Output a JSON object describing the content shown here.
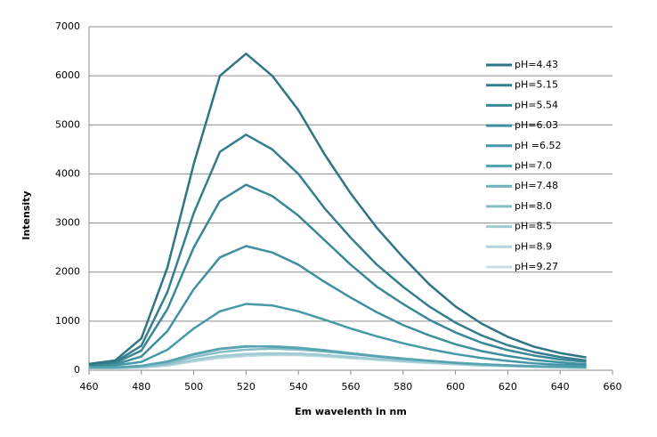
{
  "chart_data": {
    "type": "line",
    "x_label": "Em wavelenth in nm",
    "y_label": "Intensity",
    "x": [
      460,
      470,
      480,
      490,
      500,
      510,
      520,
      530,
      540,
      550,
      560,
      570,
      580,
      590,
      600,
      610,
      620,
      630,
      640,
      650
    ],
    "xlim": [
      460,
      660
    ],
    "xticks": [
      460,
      480,
      500,
      520,
      540,
      560,
      580,
      600,
      620,
      640,
      660
    ],
    "ylim": [
      0,
      7000
    ],
    "yticks": [
      0,
      1000,
      2000,
      3000,
      4000,
      5000,
      6000,
      7000
    ],
    "grid": true,
    "legend": "upper right",
    "series": [
      {
        "name": "pH=4.43",
        "color": "#2f7585",
        "values": [
          130,
          200,
          650,
          2100,
          4200,
          6000,
          6450,
          6000,
          5300,
          4400,
          3600,
          2900,
          2300,
          1750,
          1300,
          950,
          680,
          480,
          350,
          260
        ]
      },
      {
        "name": "pH=5.15",
        "color": "#357e8e",
        "values": [
          120,
          170,
          500,
          1600,
          3200,
          4450,
          4800,
          4500,
          4000,
          3300,
          2700,
          2150,
          1700,
          1300,
          970,
          710,
          510,
          370,
          270,
          200
        ]
      },
      {
        "name": "pH=5.54",
        "color": "#3a8797",
        "values": [
          110,
          150,
          400,
          1250,
          2500,
          3450,
          3780,
          3550,
          3150,
          2650,
          2150,
          1700,
          1350,
          1030,
          770,
          560,
          410,
          300,
          220,
          170
        ]
      },
      {
        "name": "pH=6.03",
        "color": "#3e90a0",
        "values": [
          100,
          120,
          280,
          800,
          1650,
          2300,
          2530,
          2400,
          2150,
          1800,
          1480,
          1180,
          920,
          710,
          530,
          390,
          290,
          210,
          160,
          120
        ]
      },
      {
        "name": "pH =6.52",
        "color": "#4599a9",
        "values": [
          90,
          100,
          170,
          420,
          850,
          1200,
          1350,
          1320,
          1200,
          1030,
          850,
          690,
          550,
          430,
          330,
          250,
          190,
          140,
          110,
          90
        ]
      },
      {
        "name": "pH=7.0",
        "color": "#56a3b1",
        "values": [
          60,
          60,
          90,
          180,
          330,
          440,
          490,
          480,
          450,
          400,
          340,
          280,
          230,
          190,
          150,
          120,
          100,
          80,
          70,
          60
        ]
      },
      {
        "name": "pH=7.48",
        "color": "#6fb1bc",
        "values": [
          55,
          55,
          85,
          170,
          320,
          430,
          480,
          490,
          460,
          410,
          350,
          290,
          240,
          195,
          155,
          125,
          100,
          85,
          70,
          60
        ]
      },
      {
        "name": "pH=8.0",
        "color": "#88bec8",
        "values": [
          50,
          50,
          75,
          140,
          270,
          370,
          420,
          440,
          420,
          380,
          330,
          280,
          230,
          190,
          150,
          120,
          100,
          80,
          70,
          60
        ]
      },
      {
        "name": "pH=8.5",
        "color": "#9ecad2",
        "values": [
          45,
          45,
          65,
          110,
          210,
          290,
          330,
          345,
          340,
          310,
          270,
          230,
          190,
          160,
          130,
          105,
          90,
          75,
          65,
          55
        ]
      },
      {
        "name": "pH=8.9",
        "color": "#b3d5db",
        "values": [
          40,
          40,
          60,
          100,
          190,
          260,
          300,
          320,
          315,
          290,
          255,
          220,
          185,
          155,
          125,
          100,
          85,
          70,
          60,
          50
        ]
      },
      {
        "name": "pH=9.27",
        "color": "#c8e0e5",
        "values": [
          40,
          40,
          55,
          95,
          180,
          250,
          290,
          310,
          305,
          280,
          245,
          210,
          175,
          145,
          120,
          95,
          80,
          65,
          55,
          45
        ]
      }
    ]
  }
}
